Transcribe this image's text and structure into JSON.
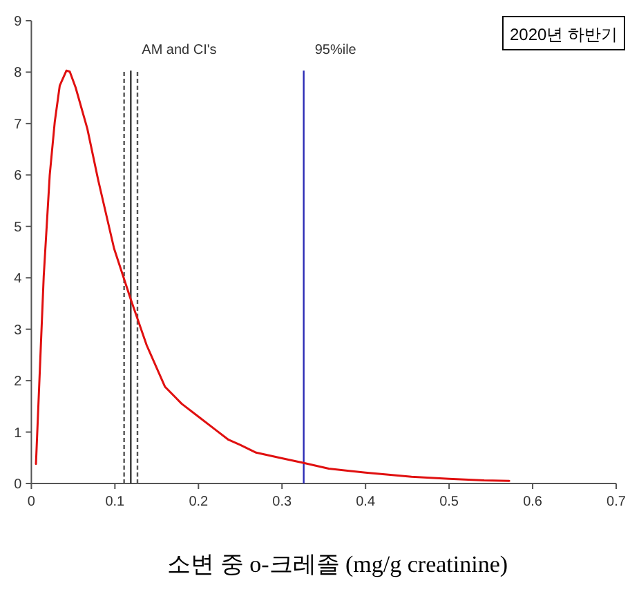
{
  "chart_data": {
    "type": "line",
    "title": "2020년 하반기",
    "xlabel": "소변 중 o-크레졸 (mg/g creatinine)",
    "xlim": [
      0,
      0.7
    ],
    "xticks": [
      0,
      0.1,
      0.2,
      0.3,
      0.4,
      0.5,
      0.6,
      0.7
    ],
    "ylim": [
      0,
      9
    ],
    "yticks": [
      0,
      1,
      2,
      3,
      4,
      5,
      6,
      7,
      8,
      9
    ],
    "grid": false,
    "marker": "none",
    "line_style": "solid",
    "series": [
      {
        "color": "#e01010",
        "x": [
          0.0055,
          0.0148,
          0.022,
          0.028,
          0.034,
          0.042,
          0.046,
          0.053,
          0.067,
          0.08,
          0.099,
          0.119,
          0.138,
          0.16,
          0.18,
          0.2,
          0.22,
          0.236,
          0.25,
          0.269,
          0.3,
          0.326,
          0.356,
          0.4,
          0.455,
          0.5,
          0.542,
          0.572
        ],
        "values": [
          0.38,
          4.03,
          6.0,
          7.03,
          7.74,
          8.03,
          8.01,
          7.7,
          6.9,
          5.9,
          4.57,
          3.58,
          2.69,
          1.88,
          1.55,
          1.3,
          1.05,
          0.85,
          0.75,
          0.6,
          0.49,
          0.4,
          0.29,
          0.21,
          0.13,
          0.09,
          0.06,
          0.05
        ]
      }
    ],
    "ref_lines": [
      {
        "axis": "x",
        "value": 0.111,
        "color": "#555555",
        "line_style": "dashed"
      },
      {
        "axis": "x",
        "value": 0.119,
        "label": "AM and CI's",
        "color": "#333333",
        "line_style": "solid"
      },
      {
        "axis": "x",
        "value": 0.127,
        "color": "#555555",
        "line_style": "dashed"
      },
      {
        "axis": "x",
        "value": 0.326,
        "label": "95%ile",
        "color": "#2b2bb5",
        "line_style": "solid"
      }
    ]
  }
}
